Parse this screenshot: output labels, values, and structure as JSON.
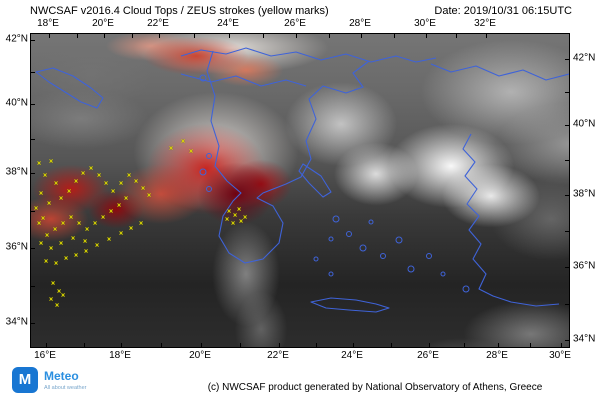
{
  "header": {
    "title": "NWCSAF v2016.4 Cloud Tops / ZEUS strokes (yellow marks)",
    "date": "Date: 2019/10/31 06:15UTC"
  },
  "footer": {
    "copyright": "(c) NWCSAF product generated by National Observatory of Athens, Greece",
    "logo": {
      "initial": "M",
      "name": "Meteo",
      "tagline": "All about weather"
    }
  },
  "map": {
    "colors": {
      "coastline": "#3f63d8",
      "strokes": "#e8e400",
      "frame": "#000000",
      "logo_blue": "#1876d2"
    },
    "axis": {
      "top": [
        {
          "label": "18°E",
          "pos": 18
        },
        {
          "label": "20°E",
          "pos": 73
        },
        {
          "label": "22°E",
          "pos": 128
        },
        {
          "label": "24°E",
          "pos": 198
        },
        {
          "label": "26°E",
          "pos": 265
        },
        {
          "label": "28°E",
          "pos": 330
        },
        {
          "label": "30°E",
          "pos": 395
        },
        {
          "label": "32°E",
          "pos": 455
        }
      ],
      "bottom": [
        {
          "label": "16°E",
          "pos": 15
        },
        {
          "label": "18°E",
          "pos": 90
        },
        {
          "label": "20°E",
          "pos": 170
        },
        {
          "label": "22°E",
          "pos": 248
        },
        {
          "label": "24°E",
          "pos": 322
        },
        {
          "label": "26°E",
          "pos": 398
        },
        {
          "label": "28°E",
          "pos": 467
        },
        {
          "label": "30°E",
          "pos": 530
        }
      ],
      "left": [
        {
          "label": "42°N",
          "pos": 6
        },
        {
          "label": "40°N",
          "pos": 70
        },
        {
          "label": "38°N",
          "pos": 139
        },
        {
          "label": "36°N",
          "pos": 214
        },
        {
          "label": "34°N",
          "pos": 289
        }
      ],
      "right": [
        {
          "label": "42°N",
          "pos": 25
        },
        {
          "label": "40°N",
          "pos": 91
        },
        {
          "label": "38°N",
          "pos": 161
        },
        {
          "label": "36°N",
          "pos": 233
        },
        {
          "label": "34°N",
          "pos": 306
        }
      ]
    },
    "coastlines": [
      "M182,17 L176,37 L184,62 L180,87 L188,112 L184,132 L196,147 L210,159 L202,167 L192,182 L188,202 L198,219 L214,229 L232,225 L248,209 L252,189 L242,172 L226,164 L232,159 L255,150 L270,143 L280,125 L275,107 L285,85 L278,65 L292,52 L315,59 L332,53 L322,39 L338,27",
      "M150,22 L170,16 L195,20 L215,14 L240,22 L265,18 L290,26 L315,20 L340,28 L365,22 L385,28 L405,24",
      "M150,40 L180,48 L205,42 L230,52 L255,46 L275,52",
      "M400,30 L420,38 L445,32 L468,42 L492,36 L515,46 L538,40",
      "M440,100 L432,115 L444,128 L434,142 L446,155 L436,170 L448,182 L438,196 L450,210 L442,225 L455,240 L448,255 L462,262 L480,268 L505,272 L528,270",
      "M272,130 L290,142 L300,158 L292,163 L278,149 L268,137 Z",
      "M280,268 L300,264 L325,266 L345,270 L358,274 L345,278 L318,276 L295,274 Z",
      "M5,38 L22,34 L42,42 L60,54 L72,64 L66,74 L50,68 L34,58 L18,48 Z"
    ],
    "islands": [
      [
        172,
        44,
        3
      ],
      [
        178,
        122,
        2.5
      ],
      [
        172,
        138,
        3
      ],
      [
        178,
        155,
        2.5
      ],
      [
        305,
        185,
        3
      ],
      [
        318,
        200,
        2.5
      ],
      [
        332,
        214,
        3
      ],
      [
        352,
        222,
        2.5
      ],
      [
        368,
        206,
        3
      ],
      [
        340,
        188,
        2
      ],
      [
        300,
        205,
        2
      ],
      [
        380,
        235,
        3
      ],
      [
        398,
        222,
        2.5
      ],
      [
        412,
        240,
        2
      ],
      [
        435,
        255,
        3
      ],
      [
        300,
        240,
        2
      ],
      [
        285,
        225,
        2
      ]
    ],
    "strokes": [
      [
        8,
        130
      ],
      [
        14,
        142
      ],
      [
        20,
        128
      ],
      [
        25,
        150
      ],
      [
        10,
        160
      ],
      [
        18,
        170
      ],
      [
        30,
        165
      ],
      [
        38,
        158
      ],
      [
        45,
        148
      ],
      [
        52,
        140
      ],
      [
        60,
        135
      ],
      [
        68,
        142
      ],
      [
        75,
        150
      ],
      [
        82,
        158
      ],
      [
        90,
        150
      ],
      [
        98,
        142
      ],
      [
        105,
        148
      ],
      [
        112,
        155
      ],
      [
        118,
        162
      ],
      [
        95,
        165
      ],
      [
        88,
        172
      ],
      [
        80,
        178
      ],
      [
        72,
        184
      ],
      [
        64,
        190
      ],
      [
        56,
        196
      ],
      [
        48,
        190
      ],
      [
        40,
        184
      ],
      [
        32,
        190
      ],
      [
        24,
        196
      ],
      [
        16,
        202
      ],
      [
        10,
        210
      ],
      [
        20,
        215
      ],
      [
        30,
        210
      ],
      [
        42,
        205
      ],
      [
        54,
        208
      ],
      [
        66,
        212
      ],
      [
        78,
        206
      ],
      [
        90,
        200
      ],
      [
        100,
        195
      ],
      [
        110,
        190
      ],
      [
        35,
        225
      ],
      [
        25,
        230
      ],
      [
        15,
        228
      ],
      [
        45,
        222
      ],
      [
        55,
        218
      ],
      [
        8,
        190
      ],
      [
        5,
        175
      ],
      [
        12,
        185
      ],
      [
        198,
        178
      ],
      [
        204,
        182
      ],
      [
        210,
        188
      ],
      [
        202,
        190
      ],
      [
        208,
        176
      ],
      [
        214,
        184
      ],
      [
        196,
        186
      ],
      [
        22,
        250
      ],
      [
        28,
        258
      ],
      [
        20,
        266
      ],
      [
        26,
        272
      ],
      [
        32,
        262
      ],
      [
        140,
        115
      ],
      [
        152,
        108
      ],
      [
        160,
        118
      ]
    ]
  }
}
